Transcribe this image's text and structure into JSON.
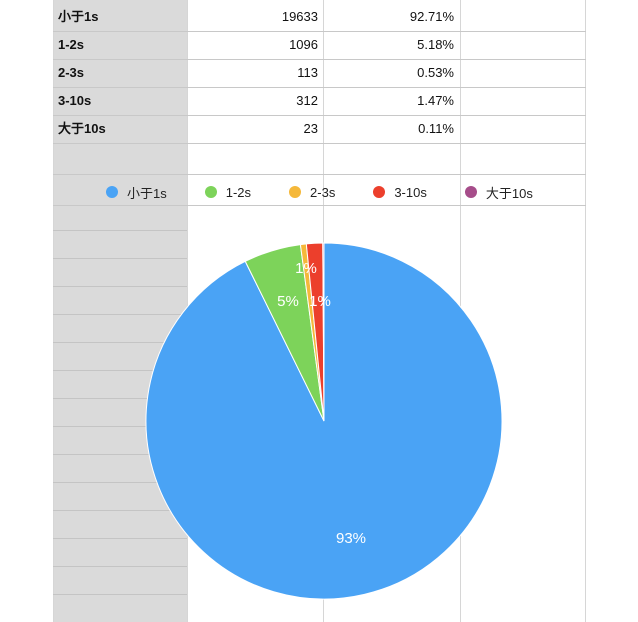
{
  "table": {
    "rows": [
      {
        "label": "小于1s",
        "count": "19633",
        "percent": "92.71%"
      },
      {
        "label": "1-2s",
        "count": "1096",
        "percent": "5.18%"
      },
      {
        "label": "2-3s",
        "count": "113",
        "percent": "0.53%"
      },
      {
        "label": "3-10s",
        "count": "312",
        "percent": "1.47%"
      },
      {
        "label": "大于10s",
        "count": "23",
        "percent": "0.11%"
      }
    ]
  },
  "chart_data": {
    "type": "pie",
    "categories": [
      "小于1s",
      "1-2s",
      "2-3s",
      "3-10s",
      "大于10s"
    ],
    "values": [
      19633,
      1096,
      113,
      312,
      23
    ],
    "colors": [
      "#4aa3f5",
      "#7dd35a",
      "#f5b83a",
      "#ec3f2c",
      "#a64d8a"
    ],
    "slice_labels": [
      "93%",
      "5%",
      "1%",
      "1%",
      ""
    ],
    "legend": {
      "placement": "top",
      "items": [
        {
          "label": "小于1s",
          "color": "#4aa3f5"
        },
        {
          "label": "1-2s",
          "color": "#7dd35a"
        },
        {
          "label": "2-3s",
          "color": "#f5b83a"
        },
        {
          "label": "3-10s",
          "color": "#ec3f2c"
        },
        {
          "label": "大于10s",
          "color": "#a64d8a"
        }
      ]
    }
  }
}
